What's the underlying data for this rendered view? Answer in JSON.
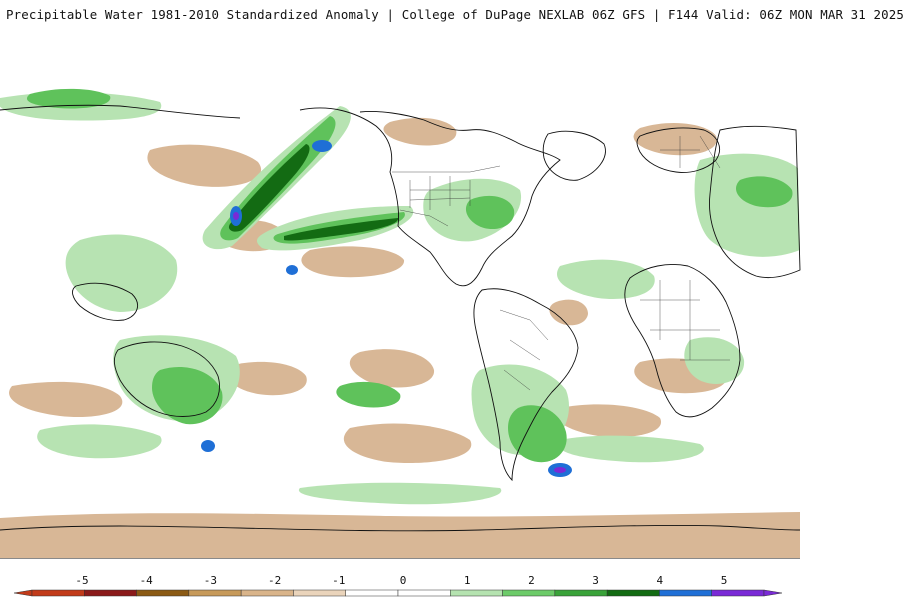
{
  "header": {
    "title": "Precipitable Water 1981-2010 Standardized Anomaly | College of DuPage NEXLAB  06Z GFS | F144 Valid: 06Z MON MAR 31 2025"
  },
  "map": {
    "projection": "global cylindrical",
    "ocean_color": "#ffffff",
    "coastline_color": "#111111"
  },
  "legend": {
    "ticks": [
      "-5",
      "-4",
      "-3",
      "-2",
      "-1",
      "0",
      "1",
      "2",
      "3",
      "4",
      "5"
    ],
    "colors": [
      "#c23b1a",
      "#8b1a1a",
      "#8b5a14",
      "#c79a5a",
      "#d9b48a",
      "#ead4bb",
      "#ffffff",
      "#ffffff",
      "#b5e3b0",
      "#6ccb69",
      "#3aa33a",
      "#136b13",
      "#1f6fd6",
      "#7a2ad6"
    ]
  }
}
